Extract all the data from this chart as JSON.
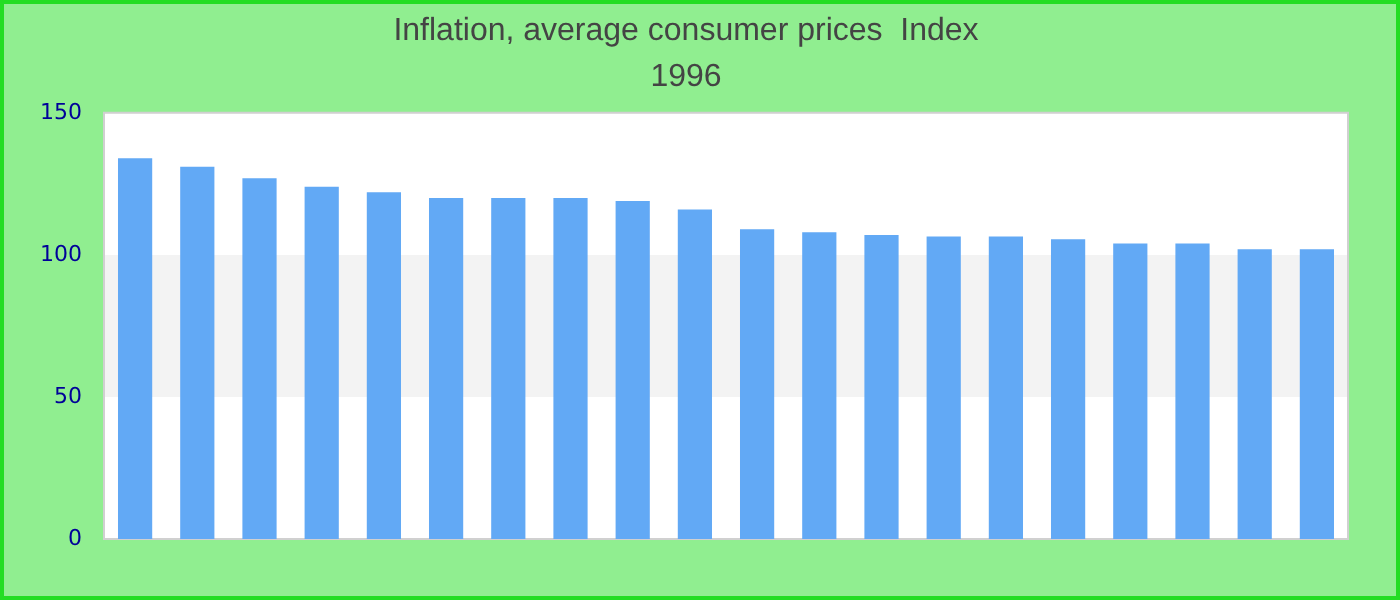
{
  "chart_data": {
    "type": "bar",
    "title": "Inflation, average consumer prices  Index",
    "subtitle": "1996",
    "categories": [
      null,
      null,
      null,
      null,
      null,
      null,
      null,
      null,
      null,
      null,
      null,
      null,
      null,
      null,
      null,
      null,
      null,
      null,
      null,
      null
    ],
    "values": [
      134,
      131,
      127,
      124,
      122,
      120,
      120,
      120,
      119,
      116,
      109,
      108,
      107,
      106.5,
      106.5,
      105.5,
      104,
      104,
      102,
      102
    ],
    "color": "#62a9f5",
    "ylim": [
      0,
      150
    ],
    "yticks": [
      0,
      50,
      100,
      150
    ],
    "bands": [
      {
        "axis": "y",
        "from": 50,
        "to": 100,
        "color": "#f3f3f3"
      }
    ],
    "legend": false
  }
}
